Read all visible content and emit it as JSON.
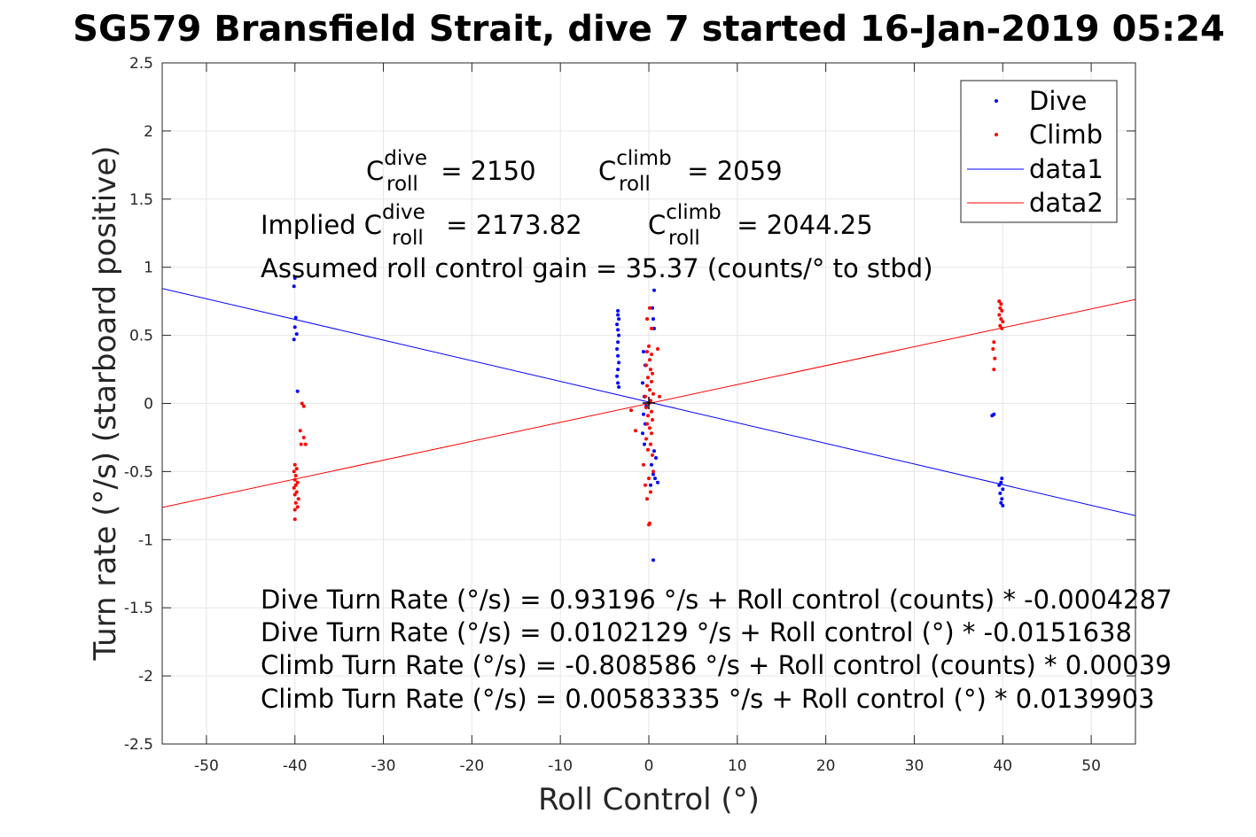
{
  "chart_data": {
    "type": "scatter",
    "title": "SG579 Bransfield Strait, dive 7 started 16-Jan-2019 05:24",
    "xlabel": "Roll Control (°)",
    "ylabel": "Turn rate (°/s) (starboard positive)",
    "xlim": [
      -55,
      55
    ],
    "ylim": [
      -2.5,
      2.5
    ],
    "xticks": [
      -50,
      -40,
      -30,
      -20,
      -10,
      0,
      10,
      20,
      30,
      40,
      50
    ],
    "xtick_labels": [
      "-50",
      "-40",
      "-30",
      "-20",
      "-10",
      "0",
      "10",
      "20",
      "30",
      "40",
      "50"
    ],
    "yticks": [
      -2.5,
      -2,
      -1.5,
      -1,
      -0.5,
      0,
      0.5,
      1,
      1.5,
      2,
      2.5
    ],
    "ytick_labels": [
      "-2.5",
      "-2",
      "-1.5",
      "-1",
      "-0.5",
      "0",
      "0.5",
      "1",
      "1.5",
      "2",
      "2.5"
    ],
    "grid": true,
    "legend_position": "top-right",
    "legend": [
      {
        "label": "Dive",
        "style": "marker",
        "color": "#0000ff"
      },
      {
        "label": "Climb",
        "style": "marker",
        "color": "#ff0000"
      },
      {
        "label": "data1",
        "style": "line",
        "color": "#0000ff"
      },
      {
        "label": "data2",
        "style": "line",
        "color": "#ff0000"
      }
    ],
    "series": [
      {
        "name": "Dive",
        "color": "#0000ff",
        "mode": "markers",
        "points": [
          [
            -40.0,
            0.92
          ],
          [
            -40.1,
            0.86
          ],
          [
            -39.9,
            0.63
          ],
          [
            -40.0,
            0.56
          ],
          [
            -39.8,
            0.51
          ],
          [
            -40.1,
            0.47
          ],
          [
            -39.7,
            0.09
          ],
          [
            -3.5,
            0.68
          ],
          [
            -3.5,
            0.65
          ],
          [
            -3.4,
            0.62
          ],
          [
            -3.6,
            0.58
          ],
          [
            -3.5,
            0.54
          ],
          [
            -3.4,
            0.5
          ],
          [
            -3.5,
            0.45
          ],
          [
            -3.6,
            0.4
          ],
          [
            -3.5,
            0.35
          ],
          [
            -3.4,
            0.3
          ],
          [
            -3.5,
            0.25
          ],
          [
            -3.6,
            0.2
          ],
          [
            -3.5,
            0.15
          ],
          [
            -3.4,
            0.12
          ],
          [
            0.6,
            0.83
          ],
          [
            0.4,
            0.7
          ],
          [
            0.5,
            0.62
          ],
          [
            0.6,
            0.55
          ],
          [
            -0.6,
            0.38
          ],
          [
            -0.4,
            0.28
          ],
          [
            -0.7,
            0.15
          ],
          [
            -0.5,
            0.05
          ],
          [
            -0.3,
            -0.02
          ],
          [
            -0.6,
            -0.08
          ],
          [
            -0.4,
            -0.15
          ],
          [
            -0.7,
            -0.22
          ],
          [
            -0.5,
            -0.3
          ],
          [
            0.6,
            -0.35
          ],
          [
            0.8,
            -0.4
          ],
          [
            0.3,
            -0.45
          ],
          [
            0.5,
            -0.52
          ],
          [
            0.7,
            -0.55
          ],
          [
            1.0,
            -0.58
          ],
          [
            0.2,
            -0.6
          ],
          [
            0.5,
            -1.15
          ],
          [
            39.0,
            -0.08
          ],
          [
            38.8,
            -0.09
          ],
          [
            39.9,
            -0.55
          ],
          [
            39.8,
            -0.58
          ],
          [
            39.6,
            -0.6
          ],
          [
            40.0,
            -0.63
          ],
          [
            39.7,
            -0.66
          ],
          [
            39.9,
            -0.7
          ],
          [
            39.8,
            -0.73
          ],
          [
            40.0,
            -0.75
          ]
        ]
      },
      {
        "name": "Climb",
        "color": "#ff0000",
        "mode": "markers",
        "points": [
          [
            -39.2,
            0.0
          ],
          [
            -39.0,
            -0.02
          ],
          [
            -39.4,
            -0.2
          ],
          [
            -39.0,
            -0.25
          ],
          [
            -39.3,
            -0.3
          ],
          [
            -38.8,
            -0.3
          ],
          [
            -40.0,
            -0.45
          ],
          [
            -39.8,
            -0.48
          ],
          [
            -40.1,
            -0.5
          ],
          [
            -39.9,
            -0.53
          ],
          [
            -40.0,
            -0.56
          ],
          [
            -39.7,
            -0.58
          ],
          [
            -39.9,
            -0.6
          ],
          [
            -40.1,
            -0.62
          ],
          [
            -39.8,
            -0.65
          ],
          [
            -40.0,
            -0.67
          ],
          [
            -39.6,
            -0.7
          ],
          [
            -39.9,
            -0.73
          ],
          [
            -39.7,
            -0.76
          ],
          [
            -40.0,
            -0.78
          ],
          [
            -40.0,
            -0.85
          ],
          [
            0.0,
            0.42
          ],
          [
            -0.2,
            0.38
          ],
          [
            0.3,
            0.36
          ],
          [
            0.1,
            0.32
          ],
          [
            -0.3,
            0.28
          ],
          [
            0.2,
            0.25
          ],
          [
            0.4,
            0.22
          ],
          [
            -0.1,
            0.19
          ],
          [
            0.3,
            0.16
          ],
          [
            -0.2,
            0.13
          ],
          [
            0.1,
            0.1
          ],
          [
            0.5,
            0.07
          ],
          [
            -0.4,
            0.05
          ],
          [
            0.2,
            0.02
          ],
          [
            0.0,
            0.0
          ],
          [
            -0.3,
            -0.03
          ],
          [
            0.3,
            -0.06
          ],
          [
            -0.1,
            -0.09
          ],
          [
            0.4,
            -0.12
          ],
          [
            -0.2,
            -0.15
          ],
          [
            0.1,
            -0.18
          ],
          [
            0.3,
            -0.22
          ],
          [
            -0.3,
            -0.26
          ],
          [
            0.2,
            -0.3
          ],
          [
            -0.1,
            -0.34
          ],
          [
            0.4,
            -0.38
          ],
          [
            -0.6,
            -0.45
          ],
          [
            0.5,
            -0.5
          ],
          [
            0.0,
            -0.55
          ],
          [
            -0.4,
            -0.6
          ],
          [
            0.2,
            -0.65
          ],
          [
            -0.2,
            -0.7
          ],
          [
            0.1,
            -0.88
          ],
          [
            0.0,
            -0.89
          ],
          [
            0.1,
            0.7
          ],
          [
            -0.2,
            0.62
          ],
          [
            0.3,
            0.55
          ],
          [
            1.0,
            0.4
          ],
          [
            -1.5,
            -0.2
          ],
          [
            -2.0,
            -0.05
          ],
          [
            1.2,
            0.05
          ],
          [
            39.6,
            0.75
          ],
          [
            39.8,
            0.73
          ],
          [
            39.7,
            0.7
          ],
          [
            39.9,
            0.68
          ],
          [
            39.6,
            0.65
          ],
          [
            39.8,
            0.62
          ],
          [
            40.0,
            0.6
          ],
          [
            39.7,
            0.57
          ],
          [
            39.9,
            0.55
          ],
          [
            39.0,
            0.45
          ],
          [
            38.9,
            0.4
          ],
          [
            39.1,
            0.33
          ],
          [
            39.0,
            0.25
          ]
        ]
      },
      {
        "name": "data1",
        "color": "#0000ff",
        "mode": "line",
        "points": [
          [
            -55,
            0.844
          ],
          [
            55,
            -0.824
          ]
        ]
      },
      {
        "name": "data2",
        "color": "#ff0000",
        "mode": "line",
        "points": [
          [
            -55,
            -0.7636
          ],
          [
            55,
            0.7636
          ]
        ]
      }
    ],
    "annotations": {
      "c_roll_dive": {
        "base": "C",
        "sup": "dive",
        "sub": "roll",
        "value": " = 2150"
      },
      "c_roll_climb": {
        "base": "C",
        "sup": "climb",
        "sub": "roll",
        "value": " = 2059"
      },
      "implied_prefix": "Implied ",
      "implied_dive": {
        "base": "C",
        "sup": "dive",
        "sub": "roll",
        "value": " = 2173.82"
      },
      "implied_climb": {
        "base": "C",
        "sup": "climb",
        "sub": "roll",
        "value": " = 2044.25"
      },
      "gain": "Assumed roll control gain = 35.37 (counts/° to stbd)",
      "eq1": "Dive Turn Rate (°/s) = 0.93196 °/s + Roll control (counts) * -0.0004287",
      "eq2": "Dive Turn Rate (°/s) = 0.0102129 °/s + Roll control (°) * -0.0151638",
      "eq3": "Climb Turn Rate (°/s) = -0.808586 °/s + Roll control (counts) * 0.00039",
      "eq4": "Climb Turn Rate (°/s) = 0.00583335 °/s + Roll control (°) * 0.0139903"
    }
  }
}
